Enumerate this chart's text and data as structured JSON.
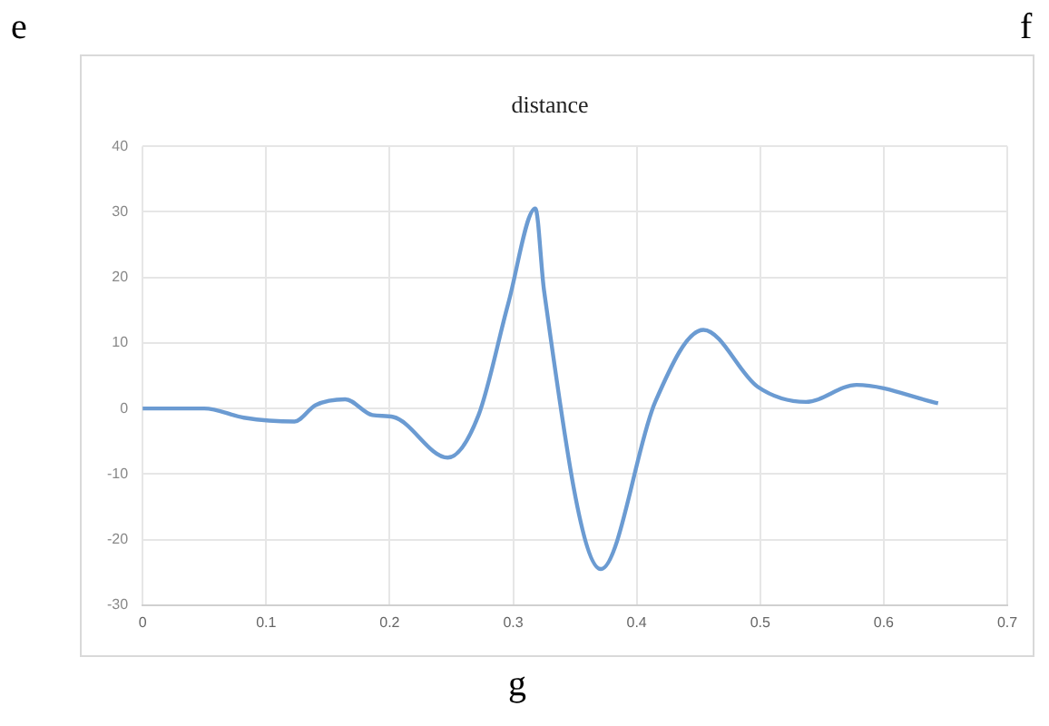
{
  "chart_data": {
    "type": "line",
    "title": "distance",
    "annotations": [
      "e",
      "f",
      "g"
    ],
    "x": [
      0,
      0.05,
      0.082,
      0.123,
      0.14,
      0.164,
      0.186,
      0.203,
      0.247,
      0.272,
      0.296,
      0.318,
      0.325,
      0.371,
      0.415,
      0.454,
      0.498,
      0.537,
      0.578,
      0.644
    ],
    "series": [
      {
        "color": "#6b9bd2",
        "values": [
          0,
          0,
          -1.4,
          -2,
          0.5,
          1.4,
          -1,
          -1.3,
          -7.5,
          -1,
          16,
          30.5,
          18,
          -24.5,
          1,
          12,
          3.3,
          1,
          3.6,
          0.8
        ]
      }
    ],
    "xlim": [
      0,
      0.7
    ],
    "xticks": [
      0,
      0.1,
      0.2,
      0.3,
      0.4,
      0.5,
      0.6,
      0.7
    ],
    "ylim": [
      -30,
      40
    ],
    "yticks": [
      -30,
      -20,
      -10,
      0,
      10,
      20,
      30,
      40
    ],
    "grid": true,
    "marker": "none",
    "line_style": "solid"
  }
}
